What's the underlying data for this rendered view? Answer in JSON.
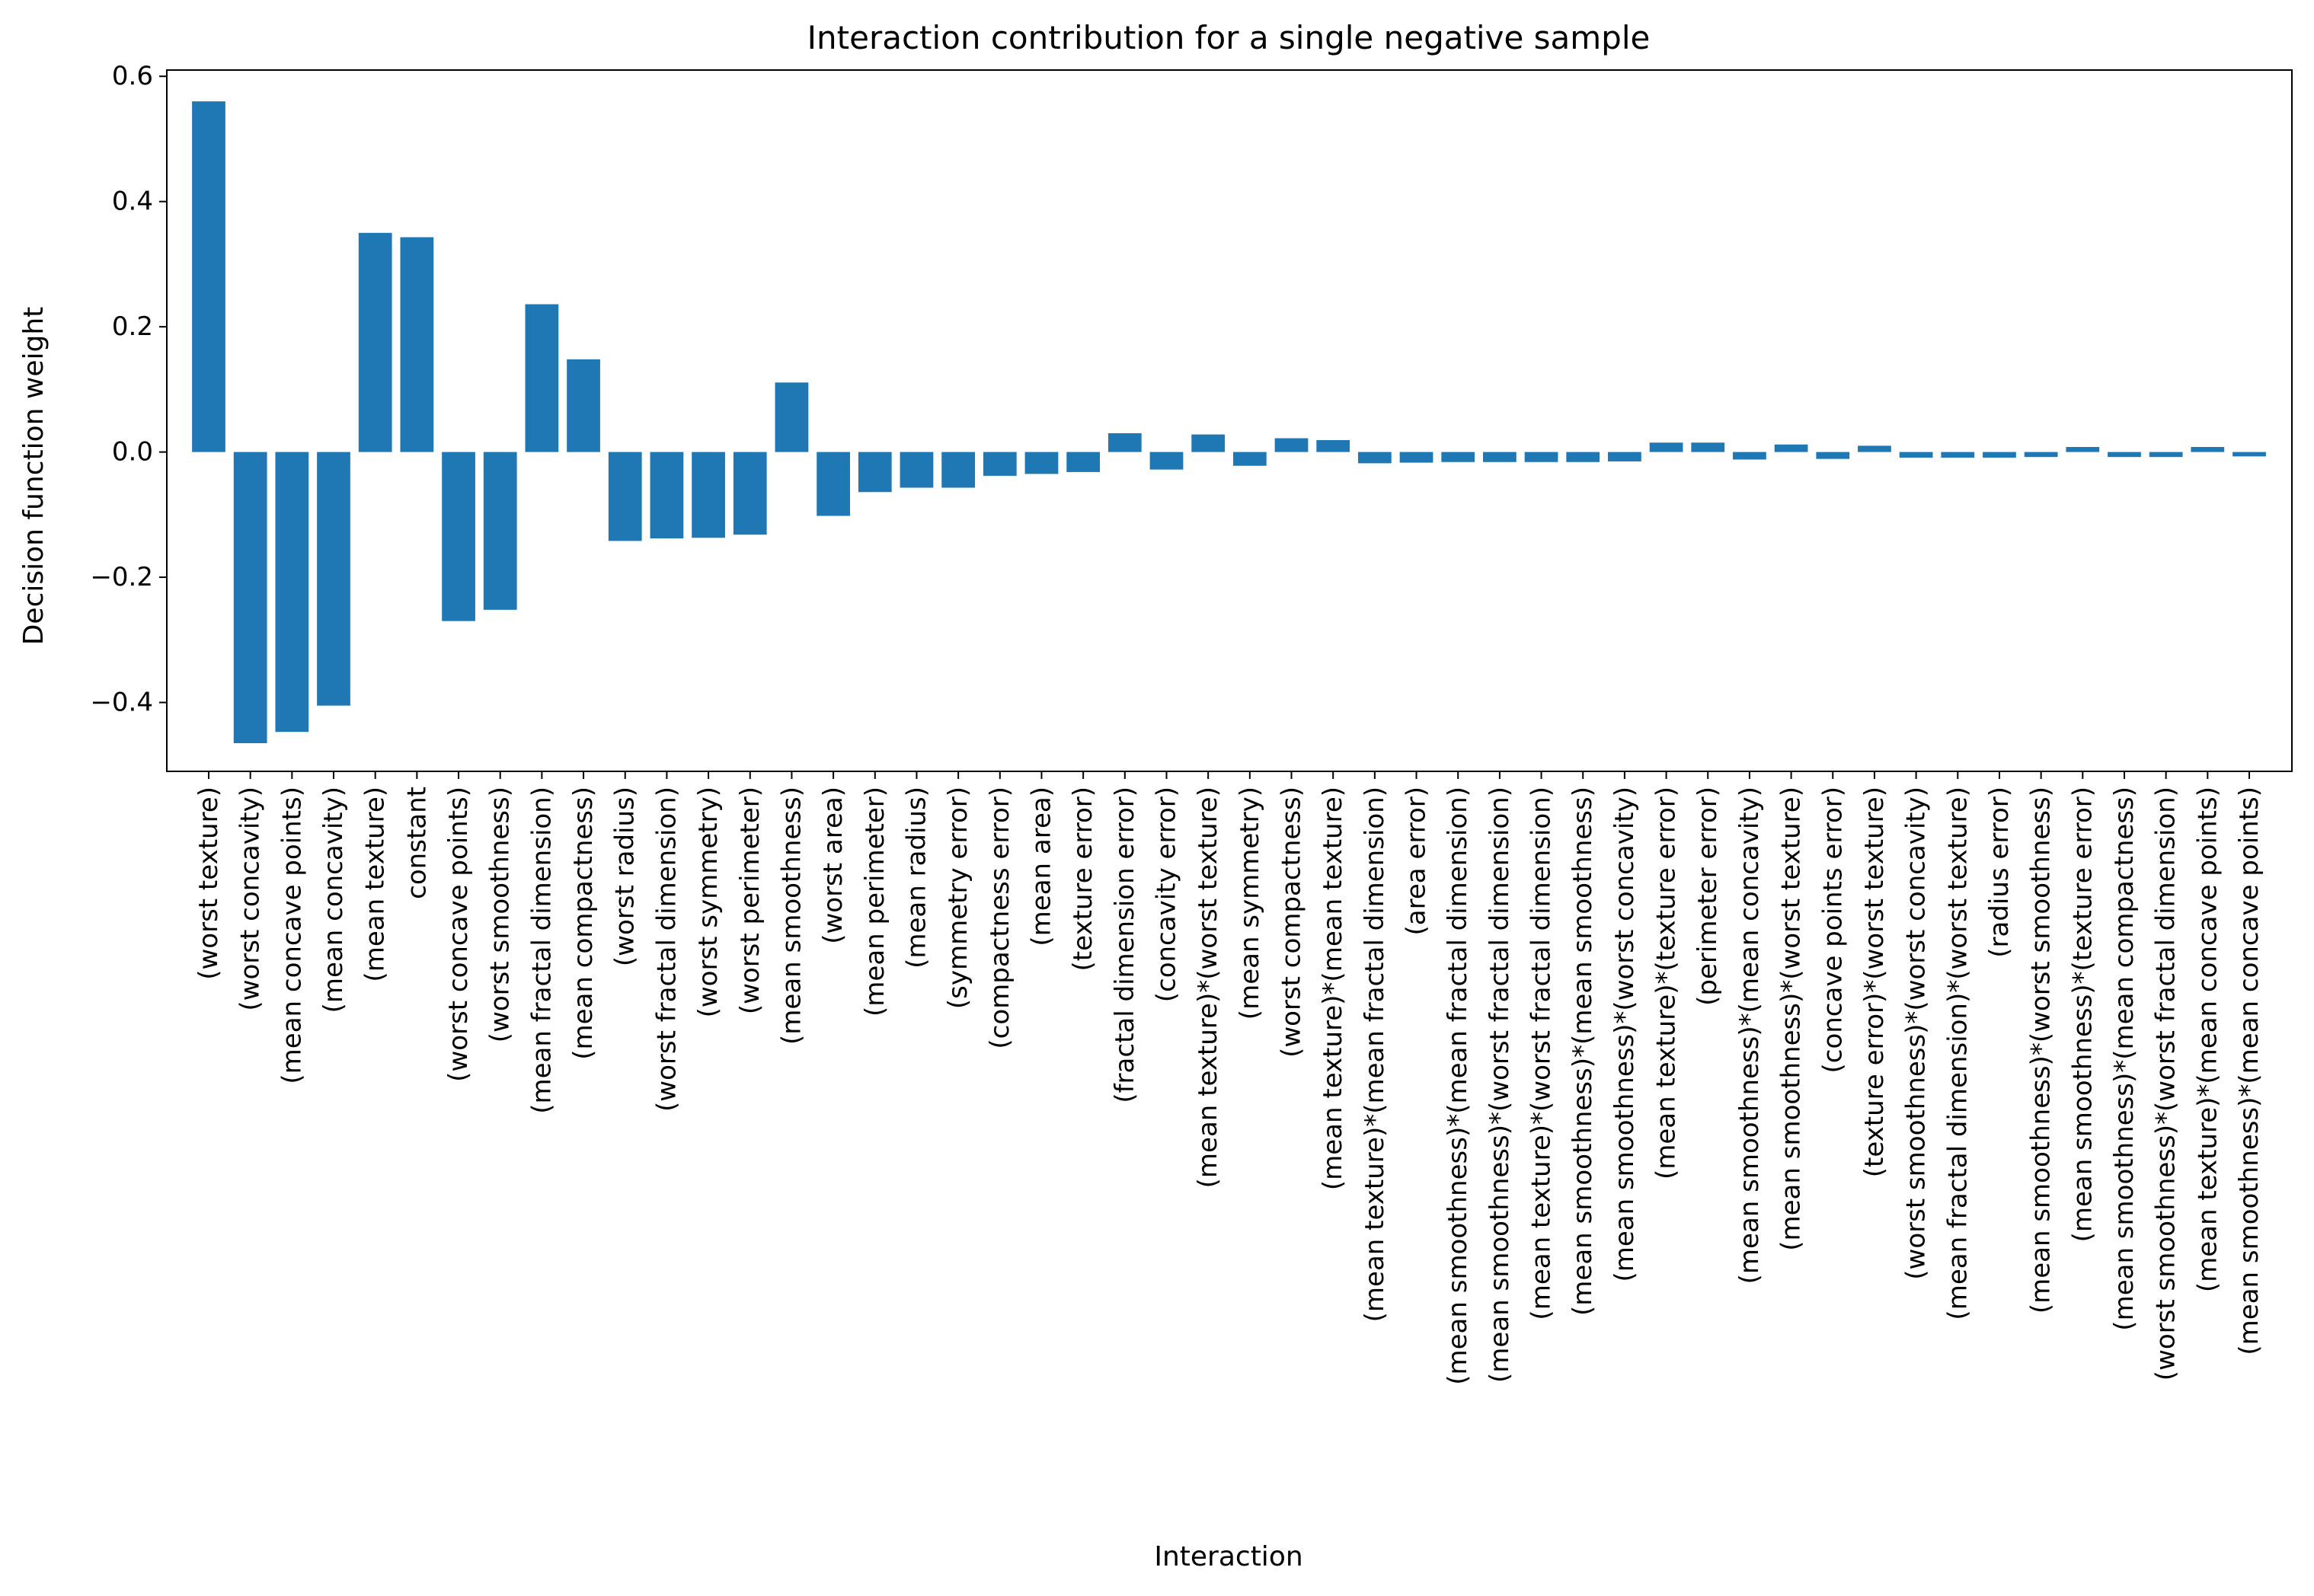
{
  "chart_data": {
    "type": "bar",
    "title": "Interaction contribution for a single negative sample",
    "xlabel": "Interaction",
    "ylabel": "Decision function weight",
    "ylim": [
      -0.51,
      0.61
    ],
    "yticks": [
      -0.4,
      -0.2,
      0.0,
      0.2,
      0.4,
      0.6
    ],
    "ytick_labels": [
      "−0.4",
      "−0.2",
      "0.0",
      "0.2",
      "0.4",
      "0.6"
    ],
    "grid": false,
    "bar_color": "#1f77b4",
    "categories": [
      "(worst texture)",
      "(worst concavity)",
      "(mean concave points)",
      "(mean concavity)",
      "(mean texture)",
      "constant",
      "(worst concave points)",
      "(worst smoothness)",
      "(mean fractal dimension)",
      "(mean compactness)",
      "(worst radius)",
      "(worst fractal dimension)",
      "(worst symmetry)",
      "(worst perimeter)",
      "(mean smoothness)",
      "(worst area)",
      "(mean perimeter)",
      "(mean radius)",
      "(symmetry error)",
      "(compactness error)",
      "(mean area)",
      "(texture error)",
      "(fractal dimension error)",
      "(concavity error)",
      "(mean texture)*(worst texture)",
      "(mean symmetry)",
      "(worst compactness)",
      "(mean texture)*(mean texture)",
      "(mean texture)*(mean fractal dimension)",
      "(area error)",
      "(mean smoothness)*(mean fractal dimension)",
      "(mean smoothness)*(worst fractal dimension)",
      "(mean texture)*(worst fractal dimension)",
      "(mean smoothness)*(mean smoothness)",
      "(mean smoothness)*(worst concavity)",
      "(mean texture)*(texture error)",
      "(perimeter error)",
      "(mean smoothness)*(mean concavity)",
      "(mean smoothness)*(worst texture)",
      "(concave points error)",
      "(texture error)*(worst texture)",
      "(worst smoothness)*(worst concavity)",
      "(mean fractal dimension)*(worst texture)",
      "(radius error)",
      "(mean smoothness)*(worst smoothness)",
      "(mean smoothness)*(texture error)",
      "(mean smoothness)*(mean compactness)",
      "(worst smoothness)*(worst fractal dimension)",
      "(mean texture)*(mean concave points)",
      "(mean smoothness)*(mean concave points)"
    ],
    "values": [
      0.56,
      -0.465,
      -0.447,
      -0.405,
      0.35,
      0.343,
      -0.27,
      -0.252,
      0.236,
      0.148,
      -0.142,
      -0.138,
      -0.137,
      -0.132,
      0.111,
      -0.102,
      -0.064,
      -0.057,
      -0.057,
      -0.038,
      -0.035,
      -0.032,
      0.03,
      -0.028,
      0.028,
      -0.022,
      0.022,
      0.019,
      -0.018,
      -0.017,
      -0.016,
      -0.016,
      -0.016,
      -0.016,
      -0.015,
      0.015,
      0.015,
      -0.012,
      0.012,
      -0.011,
      0.01,
      -0.009,
      -0.009,
      -0.009,
      -0.008,
      0.008,
      -0.008,
      -0.008,
      0.008,
      -0.007
    ]
  }
}
